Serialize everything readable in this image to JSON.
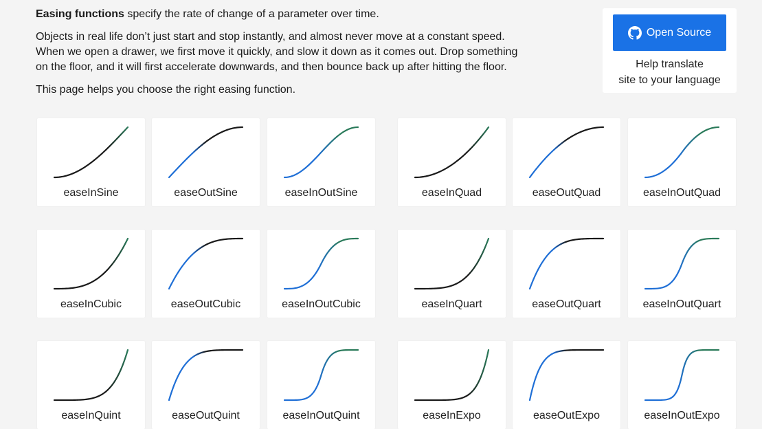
{
  "intro": {
    "title_bold": "Easing functions",
    "title_rest": " specify the rate of change of a parameter over time.",
    "line1": "Objects in real life don’t just start and stop instantly, and almost never move at a constant speed.",
    "line2": "When we open a drawer, we first move it quickly, and slow it down as it comes out. Drop something",
    "line3": "on the floor, and it will first accelerate downwards, and then bounce back up after hitting the floor.",
    "note": "This page helps you choose the right easing function."
  },
  "sidebar": {
    "open_source_label": "Open Source",
    "open_source_icon": "github-icon",
    "translate_line1": "Help translate",
    "translate_line2": "site to your language"
  },
  "colors": {
    "in": "#1a1a1a",
    "out": "#1f6fd6",
    "inout_end": "#2a7a5a",
    "button": "#1a72e6"
  },
  "easings": [
    {
      "name": "easeInSine",
      "type": "in",
      "power": "sine"
    },
    {
      "name": "easeOutSine",
      "type": "out",
      "power": "sine"
    },
    {
      "name": "easeInOutSine",
      "type": "inout",
      "power": "sine"
    },
    {
      "name": "easeInQuad",
      "type": "in",
      "power": 2
    },
    {
      "name": "easeOutQuad",
      "type": "out",
      "power": 2
    },
    {
      "name": "easeInOutQuad",
      "type": "inout",
      "power": 2
    },
    {
      "name": "easeInCubic",
      "type": "in",
      "power": 3
    },
    {
      "name": "easeOutCubic",
      "type": "out",
      "power": 3
    },
    {
      "name": "easeInOutCubic",
      "type": "inout",
      "power": 3
    },
    {
      "name": "easeInQuart",
      "type": "in",
      "power": 4
    },
    {
      "name": "easeOutQuart",
      "type": "out",
      "power": 4
    },
    {
      "name": "easeInOutQuart",
      "type": "inout",
      "power": 4
    },
    {
      "name": "easeInQuint",
      "type": "in",
      "power": 5
    },
    {
      "name": "easeOutQuint",
      "type": "out",
      "power": 5
    },
    {
      "name": "easeInOutQuint",
      "type": "inout",
      "power": 5
    },
    {
      "name": "easeInExpo",
      "type": "in",
      "power": 7
    },
    {
      "name": "easeOutExpo",
      "type": "out",
      "power": 7
    },
    {
      "name": "easeInOutExpo",
      "type": "inout",
      "power": 7
    }
  ]
}
